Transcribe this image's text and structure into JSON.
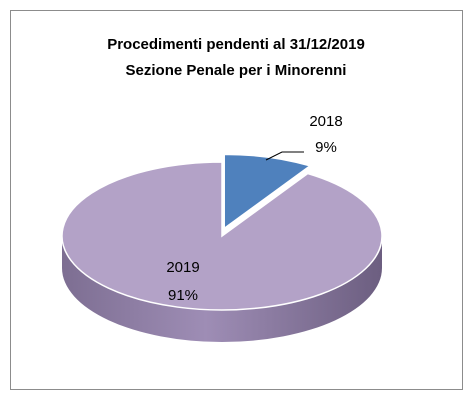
{
  "chart_data": {
    "type": "pie",
    "title": "Procedimenti pendenti al 31/12/2019",
    "subtitle": "Sezione Penale per i Minorenni",
    "categories": [
      "2018",
      "2019"
    ],
    "values": [
      9,
      91
    ],
    "value_labels": [
      "9%",
      "91%"
    ],
    "colors": [
      "#4f81bd",
      "#b3a2c7"
    ],
    "three_d": true
  }
}
